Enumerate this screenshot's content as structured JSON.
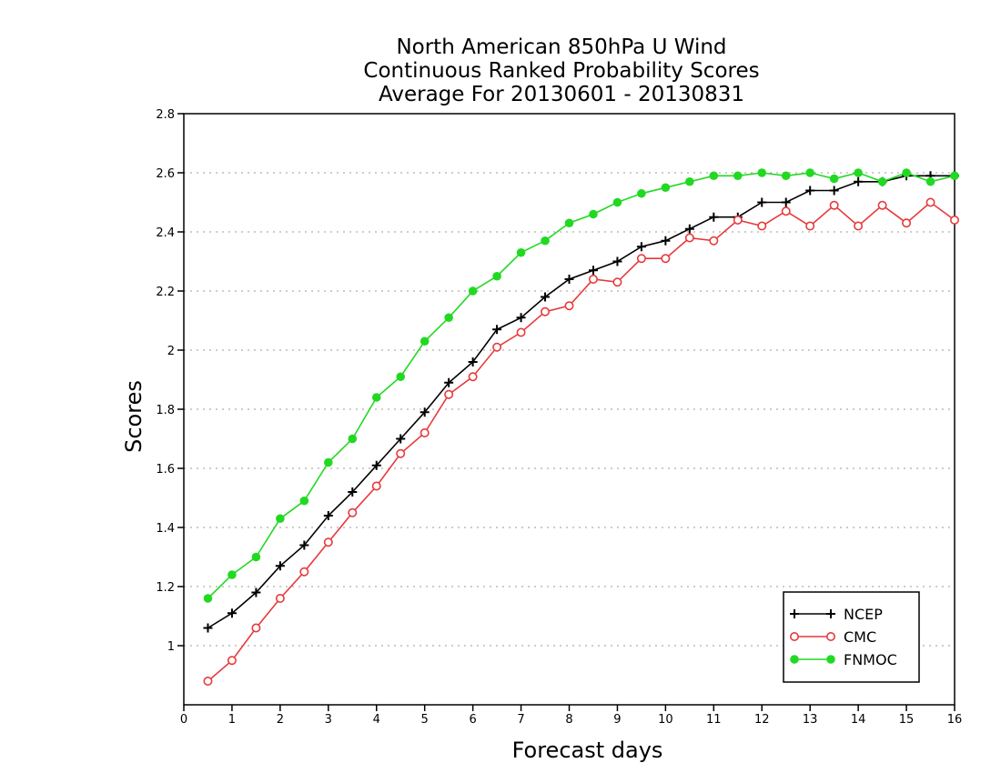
{
  "chart_data": {
    "type": "line",
    "title": [
      "North American 850hPa U Wind",
      "Continuous Ranked Probability Scores",
      "Average For 20130601 - 20130831"
    ],
    "xlabel": "Forecast days",
    "ylabel": "Scores",
    "xlim": [
      0,
      16
    ],
    "ylim": [
      0.8,
      2.8
    ],
    "xticks": [
      "0",
      "1",
      "2",
      "3",
      "4",
      "5",
      "6",
      "7",
      "8",
      "9",
      "10",
      "11",
      "12",
      "13",
      "14",
      "15",
      "16"
    ],
    "yticks": [
      "1",
      "1.2",
      "1.4",
      "1.6",
      "1.8",
      "2",
      "2.2",
      "2.4",
      "2.6",
      "2.8"
    ],
    "grid": true,
    "legend_position": "bottom-right",
    "x": [
      0.5,
      1,
      1.5,
      2,
      2.5,
      3,
      3.5,
      4,
      4.5,
      5,
      5.5,
      6,
      6.5,
      7,
      7.5,
      8,
      8.5,
      9,
      9.5,
      10,
      10.5,
      11,
      11.5,
      12,
      12.5,
      13,
      13.5,
      14,
      14.5,
      15,
      15.5,
      16
    ],
    "series": [
      {
        "name": "NCEP",
        "color": "#000000",
        "marker": "plus",
        "values": [
          1.06,
          1.11,
          1.18,
          1.27,
          1.34,
          1.44,
          1.52,
          1.61,
          1.7,
          1.79,
          1.89,
          1.96,
          2.07,
          2.11,
          2.18,
          2.24,
          2.27,
          2.3,
          2.35,
          2.37,
          2.41,
          2.45,
          2.45,
          2.5,
          2.5,
          2.54,
          2.54,
          2.57,
          2.57,
          2.59,
          2.59,
          2.59
        ]
      },
      {
        "name": "CMC",
        "color": "#e8393c",
        "marker": "open-circle",
        "values": [
          0.88,
          0.95,
          1.06,
          1.16,
          1.25,
          1.35,
          1.45,
          1.54,
          1.65,
          1.72,
          1.85,
          1.91,
          2.01,
          2.06,
          2.13,
          2.15,
          2.24,
          2.23,
          2.31,
          2.31,
          2.38,
          2.37,
          2.44,
          2.42,
          2.47,
          2.42,
          2.49,
          2.42,
          2.49,
          2.43,
          2.5,
          2.44
        ]
      },
      {
        "name": "FNMOC",
        "color": "#22d922",
        "marker": "filled-circle",
        "values": [
          1.16,
          1.24,
          1.3,
          1.43,
          1.49,
          1.62,
          1.7,
          1.84,
          1.91,
          2.03,
          2.11,
          2.2,
          2.25,
          2.33,
          2.37,
          2.43,
          2.46,
          2.5,
          2.53,
          2.55,
          2.57,
          2.59,
          2.59,
          2.6,
          2.59,
          2.6,
          2.58,
          2.6,
          2.57,
          2.6,
          2.57,
          2.59
        ]
      }
    ]
  }
}
